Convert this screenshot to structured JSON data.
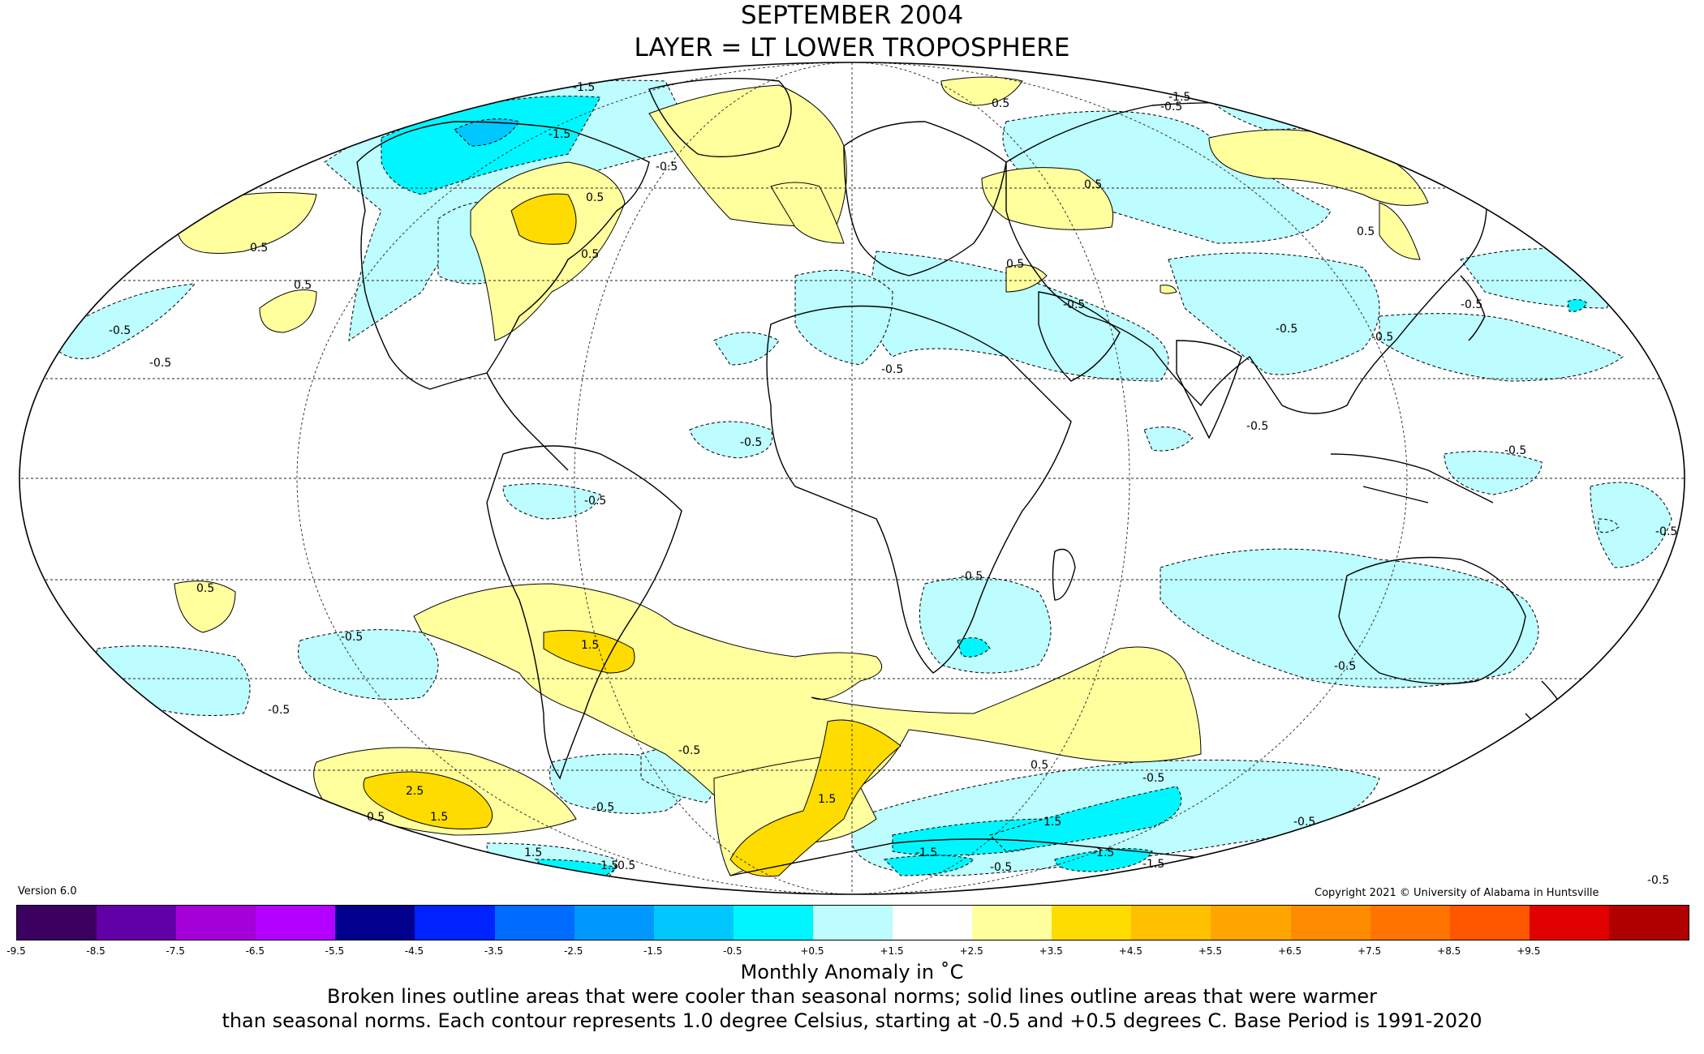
{
  "header": {
    "title_line1": "SEPTEMBER 2004",
    "title_line2": "LAYER = LT LOWER TROPOSPHERE"
  },
  "map": {
    "projection": "mollweide",
    "contour_labels": [
      {
        "id": "c1",
        "text": "-1.5"
      },
      {
        "id": "c2",
        "text": "-1.5"
      },
      {
        "id": "c3",
        "text": "-0.5"
      },
      {
        "id": "c4",
        "text": "0.5"
      },
      {
        "id": "c5",
        "text": "0.5"
      },
      {
        "id": "c6",
        "text": "0.5"
      },
      {
        "id": "c7",
        "text": "0.5"
      },
      {
        "id": "c8",
        "text": "-0.5"
      },
      {
        "id": "c9",
        "text": "-0.5"
      },
      {
        "id": "c10",
        "text": "0.5"
      },
      {
        "id": "c11",
        "text": "-1.5"
      },
      {
        "id": "c12",
        "text": "-0.5"
      },
      {
        "id": "c13",
        "text": "0.5"
      },
      {
        "id": "c14",
        "text": "0.5"
      },
      {
        "id": "c15",
        "text": "-0.5"
      },
      {
        "id": "c16",
        "text": "-0.5"
      },
      {
        "id": "c17",
        "text": "0.5"
      },
      {
        "id": "c18",
        "text": "-0.5"
      },
      {
        "id": "c19",
        "text": "-0.5"
      },
      {
        "id": "c20",
        "text": "-0.5"
      },
      {
        "id": "c21",
        "text": "-0.5"
      },
      {
        "id": "c22",
        "text": "-0.5"
      },
      {
        "id": "c23",
        "text": "-0.5"
      },
      {
        "id": "c24",
        "text": "0.5"
      },
      {
        "id": "c25",
        "text": "-0.5"
      },
      {
        "id": "c26",
        "text": "-0.5"
      },
      {
        "id": "c27",
        "text": "1.5"
      },
      {
        "id": "c28",
        "text": "-0.5"
      },
      {
        "id": "c29",
        "text": "-0.5"
      },
      {
        "id": "c30",
        "text": "-0.5"
      },
      {
        "id": "c31",
        "text": "2.5"
      },
      {
        "id": "c32",
        "text": "1.5"
      },
      {
        "id": "c33",
        "text": "0.5"
      },
      {
        "id": "c34",
        "text": "-0.5"
      },
      {
        "id": "c35",
        "text": "1.5"
      },
      {
        "id": "c36",
        "text": "-0.5"
      },
      {
        "id": "c37",
        "text": "-0.5"
      },
      {
        "id": "c38",
        "text": "1.5"
      },
      {
        "id": "c39",
        "text": "0.5"
      },
      {
        "id": "c40",
        "text": "-0.5"
      },
      {
        "id": "c41",
        "text": "1.5"
      },
      {
        "id": "c42",
        "text": "-0.5"
      },
      {
        "id": "c43",
        "text": "-1.5"
      },
      {
        "id": "c44",
        "text": "-0.5"
      },
      {
        "id": "c45",
        "text": "-1.5"
      },
      {
        "id": "c46",
        "text": "1.5"
      },
      {
        "id": "c47",
        "text": "-0.5"
      },
      {
        "id": "c48",
        "text": "-1.5"
      },
      {
        "id": "c49",
        "text": "-0.5"
      }
    ]
  },
  "footer": {
    "version": "Version 6.0",
    "copyright": "Copyright 2021 © University of Alabama in Huntsville",
    "unit_label": "Monthly Anomaly in ˚C",
    "description_line1": "Broken lines outline areas that were cooler than seasonal norms; solid lines outline areas that were warmer",
    "description_line2": "than seasonal norms. Each contour represents 1.0 degree Celsius, starting at -0.5 and +0.5 degrees C. Base Period is 1991-2020"
  },
  "color_scale": {
    "colors": [
      "#3b0060",
      "#6200a8",
      "#a400d8",
      "#b300ff",
      "#00008c",
      "#0022ff",
      "#006cff",
      "#0098ff",
      "#00c8ff",
      "#00f6ff",
      "#bdfcff",
      "#ffffff",
      "#ffff9e",
      "#ffdc00",
      "#ffc000",
      "#ffa600",
      "#ff8c00",
      "#ff7400",
      "#ff5600",
      "#e00000",
      "#b00000"
    ],
    "ticks": [
      "-9.5",
      "-8.5",
      "-7.5",
      "-6.5",
      "-5.5",
      "-4.5",
      "-3.5",
      "-2.5",
      "-1.5",
      "-0.5",
      "+0.5",
      "+1.5",
      "+2.5",
      "+3.5",
      "+4.5",
      "+5.5",
      "+6.5",
      "+7.5",
      "+8.5",
      "+9.5"
    ]
  }
}
